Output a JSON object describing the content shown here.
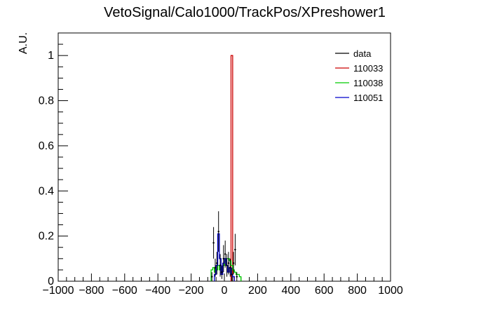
{
  "chart_data": {
    "type": "histogram",
    "title": "VetoSignal/Calo1000/TrackPos/XPreshower1",
    "xlabel": "",
    "ylabel": "A.U.",
    "xlim": [
      -1000,
      1000
    ],
    "ylim": [
      0,
      1.1
    ],
    "x_ticks": [
      -1000,
      -800,
      -600,
      -400,
      -200,
      0,
      200,
      400,
      600,
      800,
      1000
    ],
    "y_ticks": [
      0,
      0.2,
      0.4,
      0.6,
      0.8,
      1
    ],
    "grid": false,
    "legend_position": "top-right",
    "bin_width": 10,
    "series": [
      {
        "name": "data",
        "color": "#000000",
        "style": "points-with-errors",
        "points": [
          {
            "x": -75,
            "y": 0.02,
            "err": 0.02
          },
          {
            "x": -65,
            "y": 0.17,
            "err": 0.07
          },
          {
            "x": -55,
            "y": 0.06,
            "err": 0.04
          },
          {
            "x": -45,
            "y": 0.08,
            "err": 0.05
          },
          {
            "x": -35,
            "y": 0.22,
            "err": 0.09
          },
          {
            "x": -25,
            "y": 0.07,
            "err": 0.05
          },
          {
            "x": -15,
            "y": 0.04,
            "err": 0.03
          },
          {
            "x": -5,
            "y": 0.1,
            "err": 0.06
          },
          {
            "x": 5,
            "y": 0.12,
            "err": 0.06
          },
          {
            "x": 15,
            "y": 0.07,
            "err": 0.05
          },
          {
            "x": 25,
            "y": 0.08,
            "err": 0.05
          },
          {
            "x": 35,
            "y": 0.06,
            "err": 0.04
          },
          {
            "x": 45,
            "y": 0.03,
            "err": 0.03
          },
          {
            "x": 55,
            "y": 0.08,
            "err": 0.05
          },
          {
            "x": 65,
            "y": 0.14,
            "err": 0.07
          },
          {
            "x": 75,
            "y": 0.02,
            "err": 0.02
          }
        ]
      },
      {
        "name": "110033",
        "color": "#cc0000",
        "style": "step",
        "bins": [
          {
            "x": 45,
            "y": 1.0
          },
          {
            "x": 55,
            "y": 0.02
          }
        ]
      },
      {
        "name": "110038",
        "color": "#00cc00",
        "style": "step",
        "bins": [
          {
            "x": -75,
            "y": 0.05
          },
          {
            "x": -65,
            "y": 0.06
          },
          {
            "x": -55,
            "y": 0.04
          },
          {
            "x": -45,
            "y": 0.05
          },
          {
            "x": -35,
            "y": 0.07
          },
          {
            "x": -25,
            "y": 0.05
          },
          {
            "x": -15,
            "y": 0.06
          },
          {
            "x": -5,
            "y": 0.07
          },
          {
            "x": 5,
            "y": 0.09
          },
          {
            "x": 15,
            "y": 0.1
          },
          {
            "x": 25,
            "y": 0.1
          },
          {
            "x": 35,
            "y": 0.09
          },
          {
            "x": 45,
            "y": 0.07
          },
          {
            "x": 55,
            "y": 0.05
          },
          {
            "x": 65,
            "y": 0.04
          },
          {
            "x": 75,
            "y": 0.03
          },
          {
            "x": 85,
            "y": 0.03
          },
          {
            "x": 95,
            "y": 0.02
          }
        ]
      },
      {
        "name": "110051",
        "color": "#0000cc",
        "style": "step",
        "bins": [
          {
            "x": -55,
            "y": 0.03
          },
          {
            "x": -45,
            "y": 0.07
          },
          {
            "x": -35,
            "y": 0.21
          },
          {
            "x": -25,
            "y": 0.1
          },
          {
            "x": -15,
            "y": 0.03
          },
          {
            "x": -5,
            "y": 0.08
          },
          {
            "x": 5,
            "y": 0.1
          },
          {
            "x": 15,
            "y": 0.07
          },
          {
            "x": 25,
            "y": 0.04
          },
          {
            "x": 35,
            "y": 0.06
          },
          {
            "x": 45,
            "y": 0.03
          },
          {
            "x": 55,
            "y": 0.02
          }
        ]
      }
    ]
  }
}
